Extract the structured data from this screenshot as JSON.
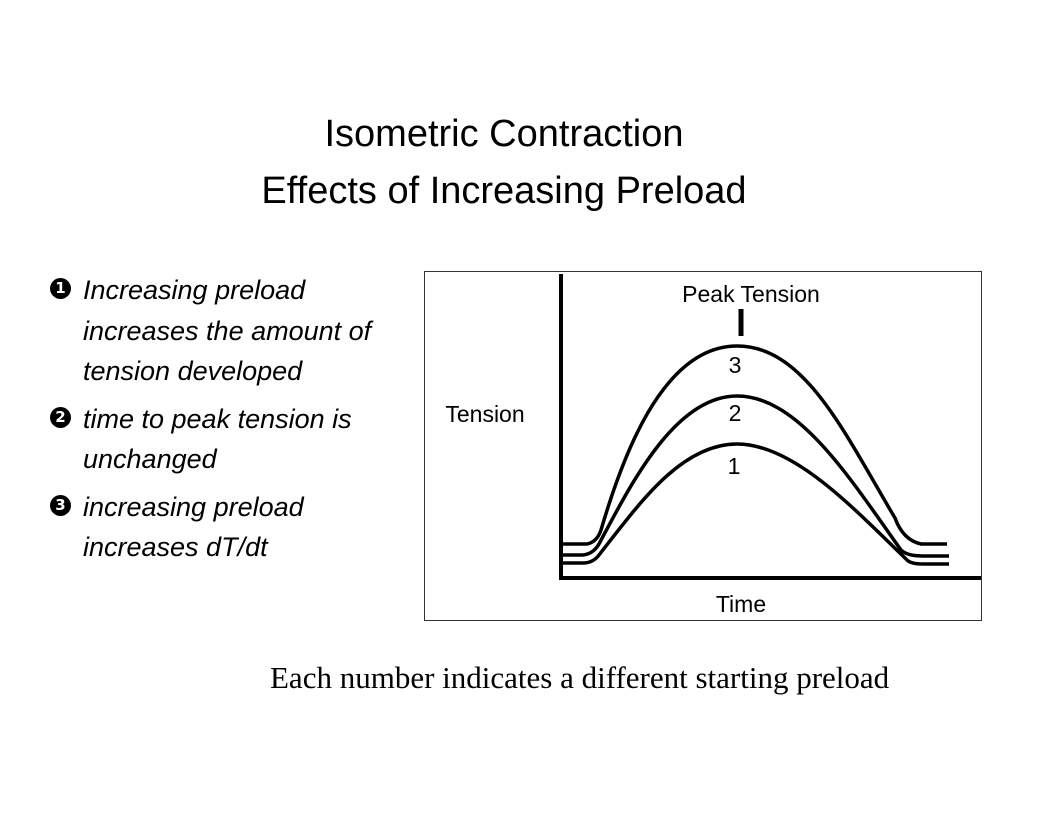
{
  "title": {
    "line1": "Isometric Contraction",
    "line2": "Effects of Increasing Preload"
  },
  "bullets": [
    {
      "marker": "1",
      "lines": [
        "Increasing preload",
        "increases the amount of",
        "tension developed"
      ]
    },
    {
      "marker": "2",
      "lines": [
        "time to peak tension is",
        "unchanged"
      ]
    },
    {
      "marker": "3",
      "lines": [
        "increasing preload",
        "increases dT/dt"
      ]
    }
  ],
  "figure": {
    "peak_label": "Peak Tension",
    "y_label": "Tension",
    "x_label": "Time",
    "curve_labels": [
      "1",
      "2",
      "3"
    ],
    "line_color": "#000000"
  },
  "caption": "Each number indicates a different starting preload"
}
